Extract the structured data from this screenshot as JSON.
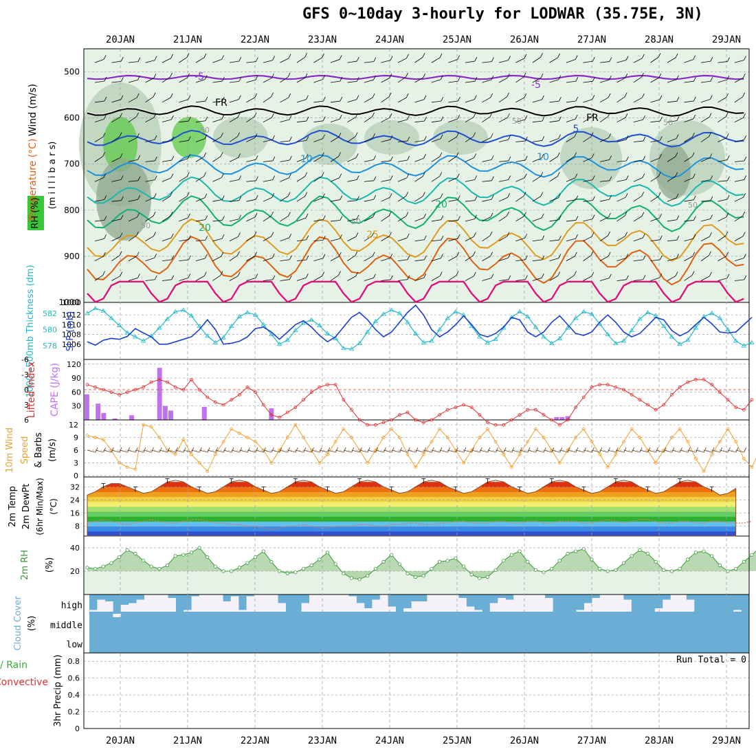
{
  "title": "GFS 0~10day 3-hourly for LODWAR (35.75E, 3N)",
  "colors": {
    "rh_fill_light": "#e6f2e6",
    "rh_fill_mid": "#b5cfb5",
    "rh_fill_dark": "#8fa88f",
    "rh_fill_high": "#5ecb4a",
    "temp_m5": "#8a2bc8",
    "temp_fr": "#000000",
    "temp_5": "#1f4fd1",
    "temp_10": "#1e90e0",
    "temp_15": "#18b8b0",
    "temp_20": "#10b070",
    "temp_25": "#e09a20",
    "temp_30": "#e06010",
    "temp_35": "#e0107a",
    "slp": "#1a3fd0",
    "thickness": "#20b8c8",
    "cape": "#c070f0",
    "lifted_index": "#e03030",
    "wind_speed": "#f0a030",
    "barbs": "#604020",
    "rh2m": "#3a9a3a",
    "cloud": "#6aaed6",
    "grid": "#a0a0a0"
  },
  "chart_data": [
    {
      "panel": "upper_air",
      "type": "contour",
      "ylabel_parts": [
        "Wind (m/s)",
        "Temperature (°C)",
        "RH (%)"
      ],
      "ylabel_inner": "(m i l l i b a r s)",
      "yticks": [
        500,
        600,
        700,
        800,
        900,
        1000
      ],
      "ylim": [
        450,
        1000
      ],
      "contour_labels": [
        "-5",
        "-5",
        "FR",
        "FR",
        "5",
        "10",
        "10",
        "20",
        "20",
        "25",
        "50",
        "50",
        "50",
        "50",
        "50",
        "50"
      ],
      "isotherms_mb": {
        "m5": 512,
        "fr": 585,
        "5": 645,
        "10": 705,
        "15": 760,
        "20": 808,
        "25": 865,
        "30": 910,
        "35": 955
      }
    },
    {
      "panel": "slp_thickness",
      "type": "line",
      "ylabel_left": "1000~500mb Thickness (dm)",
      "ylabel_right": "SLP (mb)",
      "yticks_left": [
        578,
        580,
        582
      ],
      "yticks_right": [
        1006,
        1008,
        1010,
        1012
      ],
      "top_label": "1000",
      "series": [
        {
          "name": "Thickness",
          "values": [
            582,
            582.6,
            582.3,
            581.4,
            580.5,
            579.6,
            579.1,
            578.6,
            579.2,
            580.2,
            581.3,
            582.2,
            582.4,
            581.7,
            580.4,
            579.2,
            578.4,
            579,
            580.4,
            581.6,
            582.1,
            581.8,
            580.6,
            579.4,
            578.2,
            578.7,
            579.9,
            580.8,
            581.2,
            580.5,
            579.5,
            578.9,
            577.7,
            577.6,
            578.3,
            579.7,
            581,
            581.9,
            582.4,
            582,
            580.9,
            579.5,
            578.4,
            578.6,
            580,
            581.4,
            582.2,
            581.8,
            580.4,
            579.1,
            578.4,
            578.8,
            580.2,
            581.5,
            582.2,
            581.6,
            580.3,
            579.1,
            578.3,
            578.9,
            580.2,
            581.4,
            582.2,
            581.9,
            580.7,
            579.4,
            578.3,
            578.6,
            579.9,
            581.3,
            582.1,
            581.7,
            580.4,
            579.1,
            578.2,
            578.7,
            580.2,
            581.6,
            582,
            581.4,
            580,
            578.6,
            578,
            578.4
          ]
        },
        {
          "name": "SLP",
          "values": [
            1006.5,
            1005.8,
            1006.8,
            1007.2,
            1007,
            1007.6,
            1009.2,
            1008.3,
            1007.5,
            1006,
            1006,
            1006.5,
            1007,
            1007.5,
            1009,
            1011,
            1009,
            1006,
            1006.2,
            1006.6,
            1007.5,
            1009.2,
            1009.5,
            1008.5,
            1007,
            1008.5,
            1010,
            1010.8,
            1009.5,
            1007.8,
            1006.5,
            1007.5,
            1009.5,
            1011.5,
            1012.5,
            1011,
            1009,
            1007.5,
            1008.5,
            1010.5,
            1012.5,
            1014,
            1012,
            1009,
            1007.5,
            1008.5,
            1010,
            1011.8,
            1010,
            1008,
            1007.5,
            1008.2,
            1009.5,
            1011.5,
            1011,
            1008.5,
            1007.5,
            1008.5,
            1010.5,
            1011.8,
            1010,
            1008.2,
            1007.8,
            1008.5,
            1010.5,
            1012,
            1010.5,
            1008.5,
            1007.5,
            1008.2,
            1009.8,
            1011.5,
            1011,
            1008.8,
            1007.7,
            1008.5,
            1010,
            1011.5,
            1010.2,
            1008.5,
            1008.3,
            1008.5,
            1010,
            1011.5
          ]
        }
      ]
    },
    {
      "panel": "cape_li",
      "type": "bar",
      "ylabel_left": "Lifted Index",
      "ylabel_right": "CAPE (J/kg)",
      "yticks_left": [
        "-6",
        "-3",
        "0",
        "3",
        "6"
      ],
      "yticks_right": [
        "120",
        "90",
        "60",
        "30"
      ],
      "series": [
        {
          "name": "CAPE",
          "values": [
            55,
            0,
            35,
            15,
            0,
            3,
            0,
            0,
            10,
            0,
            0,
            0,
            0,
            112,
            30,
            20,
            0,
            0,
            0,
            0,
            0,
            28,
            0,
            0,
            0,
            0,
            0,
            0,
            0,
            0,
            0,
            0,
            0,
            25,
            0,
            0,
            0,
            0,
            0,
            0,
            0,
            0,
            0,
            0,
            0,
            0,
            0,
            0,
            0,
            0,
            0,
            0,
            0,
            0,
            0,
            0,
            0,
            0,
            0,
            0,
            0,
            0,
            0,
            0,
            0,
            0,
            0,
            0,
            0,
            0,
            0,
            0,
            0,
            0,
            0,
            0,
            0,
            0,
            0,
            0,
            0,
            0,
            0,
            0,
            6,
            6,
            8,
            0,
            0,
            0,
            0,
            0,
            0,
            0,
            0,
            0,
            0,
            0,
            0,
            0,
            0,
            0,
            0,
            0,
            0,
            0,
            0,
            0,
            0,
            0,
            0,
            0,
            0,
            0,
            0,
            0,
            0,
            0,
            0
          ]
        },
        {
          "name": "Lifted Index",
          "values": [
            -1,
            -0.5,
            0,
            0.5,
            1,
            0.5,
            0,
            -0.5,
            -1.5,
            -2,
            -1.5,
            -0.5,
            0,
            -2,
            0,
            1.5,
            2.5,
            3,
            2,
            1,
            -0.5,
            0.5,
            3,
            5,
            5.5,
            4.5,
            3.5,
            2,
            0.5,
            -0.5,
            -1,
            -1,
            2,
            4,
            6,
            7,
            7,
            6.5,
            6,
            5,
            4.5,
            6,
            6.5,
            6,
            5,
            4,
            3.5,
            3,
            3.5,
            5,
            6.5,
            7,
            7,
            6,
            5,
            4,
            4,
            5,
            6,
            7,
            6,
            3.5,
            1.5,
            -0.5,
            -1,
            -1,
            -0.5,
            0,
            1,
            2,
            3,
            4,
            3,
            1,
            -0.5,
            -1.5,
            -2,
            -2,
            -1,
            0.5,
            2,
            3.5,
            4,
            2
          ]
        }
      ]
    },
    {
      "panel": "wind10m",
      "type": "line",
      "ylabel": "10m Wind Speed & Barbs (m/s)",
      "ylabel_parts": [
        "10m Wind",
        "Speed",
        "& Barbs",
        "(m/s)"
      ],
      "yticks": [
        "0",
        "3",
        "6",
        "9",
        "12"
      ],
      "series": [
        {
          "name": "Speed",
          "values": [
            9.5,
            9,
            8.5,
            6,
            3,
            2,
            1.5,
            12,
            11.5,
            9,
            6,
            5,
            8.5,
            5,
            3,
            1,
            5,
            8,
            11,
            10,
            9,
            8,
            6,
            3,
            6,
            9,
            12,
            9,
            6,
            3,
            5,
            8,
            11,
            9,
            6,
            3,
            6,
            9,
            11,
            9,
            5,
            2,
            5,
            8,
            11,
            9,
            6,
            3,
            6,
            9,
            11,
            8,
            5,
            2,
            5,
            8,
            11,
            9,
            6,
            3,
            6,
            9,
            11,
            8,
            5,
            2,
            5,
            8,
            11,
            9,
            6,
            3,
            6,
            9,
            11,
            8,
            4,
            1,
            5,
            8,
            11,
            8,
            4,
            2,
            6
          ]
        }
      ]
    },
    {
      "panel": "temp2m",
      "type": "area",
      "ylabel_parts": [
        "2m Temp",
        "2m DewPt",
        "(6hr Min/Max)",
        "(°C)"
      ],
      "yticks": [
        "8",
        "16",
        "24",
        "32"
      ],
      "bands": [
        "#3050d0",
        "#3a8ae8",
        "#60c0f0",
        "#30b030",
        "#60d060",
        "#a0e070",
        "#f0f070",
        "#f0d040",
        "#f0a020",
        "#f07010",
        "#e03010"
      ],
      "series": [
        {
          "name": "Temp",
          "values": [
            27,
            29,
            32,
            34,
            34,
            32,
            30,
            28,
            29,
            32,
            35,
            36,
            35,
            32,
            30,
            28,
            29,
            32,
            35,
            36,
            35,
            32,
            30,
            28,
            29,
            32,
            35,
            36,
            35,
            32,
            30,
            28,
            29,
            32,
            35,
            36,
            35,
            32,
            30,
            28,
            29,
            32,
            35,
            36,
            35,
            32,
            30,
            28,
            29,
            32,
            35,
            36,
            35,
            32,
            30,
            28,
            29,
            32,
            35,
            36,
            35,
            32,
            30,
            28,
            29,
            32,
            35,
            36,
            35,
            32,
            30,
            28,
            29,
            32,
            35,
            36,
            35,
            32,
            30,
            27,
            28,
            31
          ]
        },
        {
          "name": "DewPt",
          "values": [
            10,
            11,
            12,
            11,
            10,
            9,
            10,
            11,
            12,
            11,
            10,
            10,
            11,
            12,
            12,
            11,
            10,
            10,
            9,
            9,
            8,
            8,
            7,
            6,
            7,
            8,
            8,
            9,
            8,
            7,
            7,
            8,
            8,
            8,
            9,
            9,
            8,
            8,
            9,
            9,
            10,
            10,
            9,
            9,
            10,
            10,
            11,
            11,
            10,
            10,
            10,
            11,
            11,
            10,
            10,
            11,
            11,
            10,
            10,
            11,
            11,
            11,
            10,
            10,
            11,
            12,
            11,
            10,
            11,
            12,
            12,
            11,
            10,
            10,
            11,
            11,
            10,
            10,
            11,
            11,
            10,
            10,
            10,
            11
          ]
        }
      ]
    },
    {
      "panel": "rh2m",
      "type": "area",
      "ylabel": "2m RH",
      "unit": "(%)",
      "yticks": [
        "20",
        "40"
      ],
      "series": [
        {
          "name": "RH",
          "values": [
            23,
            22,
            24,
            27,
            32,
            38,
            35,
            29,
            24,
            22,
            25,
            33,
            34,
            36,
            40,
            32,
            24,
            20,
            20,
            23,
            27,
            32,
            37,
            28,
            20,
            18,
            19,
            22,
            25,
            30,
            36,
            26,
            18,
            14,
            13,
            16,
            22,
            28,
            34,
            26,
            18,
            15,
            16,
            22,
            28,
            29,
            31,
            24,
            17,
            14,
            15,
            21,
            29,
            34,
            37,
            28,
            21,
            19,
            22,
            29,
            35,
            37,
            39,
            30,
            22,
            20,
            21,
            27,
            33,
            38,
            35,
            28,
            21,
            20,
            22,
            30,
            36,
            37,
            33,
            25,
            20,
            22,
            28,
            34,
            40,
            28
          ]
        }
      ]
    },
    {
      "panel": "cloud",
      "type": "bar",
      "ylabel": "Cloud Cover (%)",
      "ylabel_parts": [
        "Cloud Cover",
        "(%)"
      ],
      "levels": [
        "high",
        "middle",
        "low"
      ],
      "series": [
        {
          "name": "high",
          "values": [
            0.9,
            0.3,
            0.4,
            1,
            0.6,
            0.5,
            0.3,
            0,
            0,
            0,
            0.2,
            1,
            0.9,
            0.1,
            0,
            0,
            0,
            0.4,
            0.1,
            0.9,
            0.1,
            0,
            0,
            0,
            0.5,
            1,
            1,
            0.5,
            0,
            0,
            0,
            0,
            0,
            0.1,
            0.5,
            0.8,
            0.3,
            0,
            0.7,
            1,
            0.8,
            0.4,
            0.4,
            0,
            0,
            0,
            0,
            0.2,
            0.7,
            0.9,
            1,
            0.5,
            0.2,
            0.3,
            0,
            0,
            0,
            0,
            0.2,
            1,
            1,
            1,
            0.9,
            0.5,
            0.2,
            0,
            0,
            0,
            0.3,
            1,
            1,
            1,
            0.8,
            0.3,
            0,
            0,
            0.3,
            1,
            1,
            1,
            1,
            1,
            0.9,
            1
          ]
        },
        {
          "name": "middle",
          "values": [
            1,
            1,
            1,
            0.8,
            1,
            1,
            1,
            1,
            1,
            1,
            1,
            1,
            1,
            1,
            1,
            1,
            1,
            1,
            1,
            1,
            1,
            1,
            1,
            1,
            1,
            1,
            1,
            1,
            1,
            1,
            1,
            1,
            1,
            1,
            1,
            1,
            1,
            1,
            1,
            1,
            1,
            1,
            1,
            1,
            1,
            1,
            1,
            1,
            1,
            1,
            1,
            1,
            1,
            1,
            1,
            1,
            1,
            1,
            1,
            1,
            1,
            1,
            1,
            1,
            1,
            1,
            1,
            1,
            1,
            1,
            1,
            1,
            1,
            1,
            1,
            1,
            1,
            1,
            1,
            1,
            1,
            1,
            1,
            1
          ]
        }
      ]
    },
    {
      "panel": "precip",
      "type": "bar",
      "ylabel_parts": [
        "Total / Rain",
        "Convective",
        "3hr Precip (mm)"
      ],
      "yticks": [
        "0",
        "0.2",
        "0.4",
        "0.6",
        "0.8"
      ],
      "run_total": "Run Total = 0",
      "values": []
    }
  ],
  "x_axis": {
    "day_labels": [
      "20JAN",
      "21JAN",
      "22JAN",
      "23JAN",
      "24JAN",
      "25JAN",
      "26JAN",
      "27JAN",
      "28JAN",
      "29JAN"
    ]
  }
}
